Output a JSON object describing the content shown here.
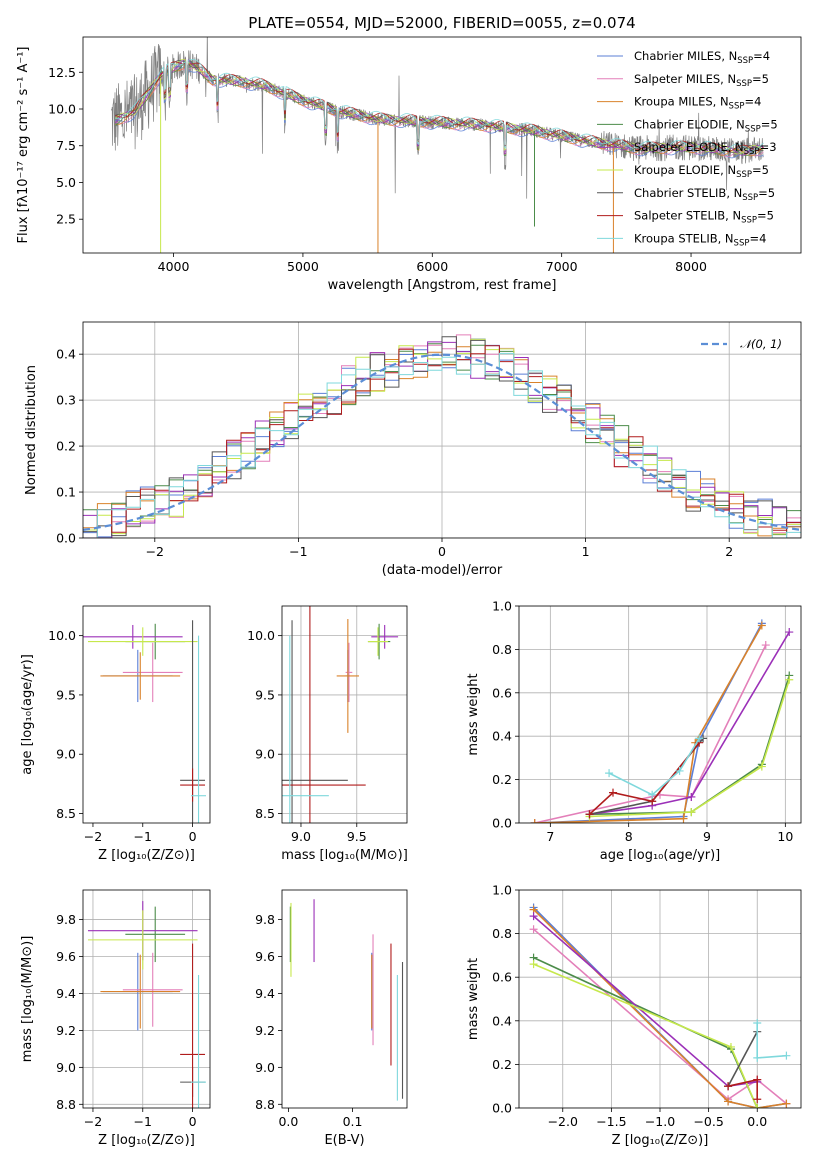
{
  "colors": {
    "Chabrier MILES": "#5b7fd6",
    "Salpeter MILES": "#e37fb9",
    "Kroupa MILES": "#d9822b",
    "Chabrier ELODIE": "#4c8c4a",
    "Salpeter ELODIE": "#9b30b8",
    "Kroupa ELODIE": "#c6e84c",
    "Chabrier STELIB": "#555555",
    "Salpeter STELIB": "#b01c1c",
    "Kroupa STELIB": "#7fd8dc",
    "data": "#808080",
    "normal": "#5b8ed6"
  },
  "chart_data": [
    {
      "type": "line",
      "title": "PLATE=0554, MJD=52000, FIBERID=0055, z=0.074",
      "xlabel": "wavelength [Angstrom, rest frame]",
      "ylabel": "Flux [fλ10⁻¹⁷ erg cm⁻² s⁻¹ A⁻¹]",
      "xlim": [
        3300,
        8850
      ],
      "ylim": [
        0.2,
        14.9
      ],
      "xticks": [
        "4000",
        "5000",
        "6000",
        "7000",
        "8000"
      ],
      "yticks": [
        "2.5",
        "5.0",
        "7.5",
        "10.0",
        "12.5"
      ],
      "legend_position": "top-right",
      "legend": [
        "Chabrier MILES, N_SSP=4",
        "Salpeter MILES, N_SSP=5",
        "Kroupa MILES, N_SSP=4",
        "Chabrier ELODIE, N_SSP=5",
        "Salpeter ELODIE, N_SSP=3",
        "Kroupa ELODIE, N_SSP=5",
        "Chabrier STELIB, N_SSP=5",
        "Salpeter STELIB, N_SSP=5",
        "Kroupa STELIB, N_SSP=4"
      ],
      "continuum": {
        "wavelength": [
          3550,
          3700,
          3800,
          3900,
          4000,
          4100,
          4200,
          4300,
          4500,
          4700,
          5000,
          5300,
          5600,
          6000,
          6400,
          6800,
          7200,
          7600,
          8000,
          8400,
          8550
        ],
        "flux": [
          9.2,
          9.8,
          11.0,
          12.3,
          12.8,
          13.2,
          12.7,
          12.0,
          11.9,
          11.6,
          10.6,
          9.8,
          9.3,
          9.1,
          8.9,
          8.5,
          7.8,
          7.3,
          7.4,
          7.1,
          7.3
        ]
      }
    },
    {
      "type": "line",
      "xlabel": "(data-model)/error",
      "ylabel": "Normed distribution",
      "xlim": [
        -2.5,
        2.5
      ],
      "ylim": [
        0,
        0.47
      ],
      "xticks": [
        "−2",
        "−1",
        "0",
        "1",
        "2"
      ],
      "yticks": [
        "0.0",
        "0.1",
        "0.2",
        "0.3",
        "0.4"
      ],
      "legend_position": "top-right",
      "legend": [
        "𝒩(0, 1)"
      ],
      "histogram_bin_edges": [
        -2.5,
        -2.4,
        -2.3,
        -2.2,
        -2.1,
        -2.0,
        -1.9,
        -1.8,
        -1.7,
        -1.6,
        -1.5,
        -1.4,
        -1.3,
        -1.2,
        -1.1,
        -1.0,
        -0.9,
        -0.8,
        -0.7,
        -0.6,
        -0.5,
        -0.4,
        -0.3,
        -0.2,
        -0.1,
        0.0,
        0.1,
        0.2,
        0.3,
        0.4,
        0.5,
        0.6,
        0.7,
        0.8,
        0.9,
        1.0,
        1.1,
        1.2,
        1.3,
        1.4,
        1.5,
        1.6,
        1.7,
        1.8,
        1.9,
        2.0,
        2.1,
        2.2,
        2.3,
        2.4,
        2.5
      ],
      "histogram_values": [
        0.02,
        0.03,
        0.04,
        0.06,
        0.07,
        0.08,
        0.09,
        0.11,
        0.13,
        0.15,
        0.17,
        0.19,
        0.21,
        0.23,
        0.26,
        0.28,
        0.29,
        0.31,
        0.33,
        0.35,
        0.36,
        0.37,
        0.38,
        0.39,
        0.39,
        0.4,
        0.4,
        0.39,
        0.38,
        0.37,
        0.35,
        0.33,
        0.31,
        0.29,
        0.27,
        0.25,
        0.23,
        0.2,
        0.18,
        0.16,
        0.14,
        0.12,
        0.1,
        0.09,
        0.08,
        0.06,
        0.05,
        0.04,
        0.03,
        0.02
      ]
    },
    {
      "type": "scatter",
      "xlabel": "Z [log₁₀(Z/Z⊙)]",
      "ylabel": "age  [log₁₀(age/yr)]",
      "xlim": [
        -2.2,
        0.35
      ],
      "ylim": [
        8.42,
        10.25
      ],
      "xticks": [
        "−2",
        "−1",
        "0"
      ],
      "yticks": [
        "8.5",
        "9.0",
        "9.5",
        "10.0"
      ],
      "points": [
        {
          "model": "Chabrier MILES",
          "x": -1.1,
          "y": 9.66,
          "xerr": 0.7,
          "yerr": 0.22
        },
        {
          "model": "Salpeter MILES",
          "x": -0.8,
          "y": 9.69,
          "xerr": 0.6,
          "yerr": 0.25
        },
        {
          "model": "Kroupa MILES",
          "x": -1.05,
          "y": 9.66,
          "xerr": 0.8,
          "yerr": 0.2
        },
        {
          "model": "Chabrier ELODIE",
          "x": -0.75,
          "y": 9.95,
          "xerr": 0.6,
          "yerr": 0.15
        },
        {
          "model": "Salpeter ELODIE",
          "x": -1.2,
          "y": 9.99,
          "xerr": 1.0,
          "yerr": 0.1
        },
        {
          "model": "Kroupa ELODIE",
          "x": -1.0,
          "y": 9.95,
          "xerr": 1.1,
          "yerr": 0.12
        },
        {
          "model": "Chabrier STELIB",
          "x": 0.0,
          "y": 8.78,
          "xerr": 0.25,
          "yerr": 1.35
        },
        {
          "model": "Salpeter STELIB",
          "x": 0.0,
          "y": 8.74,
          "xerr": 0.25,
          "yerr": 0.14
        },
        {
          "model": "Kroupa STELIB",
          "x": 0.12,
          "y": 8.65,
          "xerr": 0.15,
          "yerr": 1.35
        }
      ]
    },
    {
      "type": "scatter",
      "xlabel": "mass [log₁₀(M/M⊙)]",
      "ylabel": "",
      "xlim": [
        8.83,
        9.95
      ],
      "ylim": [
        8.42,
        10.25
      ],
      "xticks": [
        "9.0",
        "9.5"
      ],
      "yticks": [
        "8.5",
        "9.0",
        "9.5",
        "10.0"
      ],
      "points": [
        {
          "model": "Chabrier MILES",
          "x": 9.42,
          "y": 9.66,
          "xerr": 0.02,
          "yerr": 0.22
        },
        {
          "model": "Salpeter MILES",
          "x": 9.43,
          "y": 9.69,
          "xerr": 0.03,
          "yerr": 0.25
        },
        {
          "model": "Kroupa MILES",
          "x": 9.42,
          "y": 9.66,
          "xerr": 0.1,
          "yerr": 0.48
        },
        {
          "model": "Chabrier ELODIE",
          "x": 9.7,
          "y": 9.95,
          "xerr": 0.1,
          "yerr": 0.15
        },
        {
          "model": "Salpeter ELODIE",
          "x": 9.75,
          "y": 9.99,
          "xerr": 0.12,
          "yerr": 0.1
        },
        {
          "model": "Kroupa ELODIE",
          "x": 9.69,
          "y": 9.95,
          "xerr": 0.09,
          "yerr": 0.12
        },
        {
          "model": "Chabrier STELIB",
          "x": 8.92,
          "y": 8.78,
          "xerr": 0.5,
          "yerr": 1.35
        },
        {
          "model": "Salpeter STELIB",
          "x": 9.08,
          "y": 8.74,
          "xerr": 0.5,
          "yerr": 1.9
        },
        {
          "model": "Kroupa STELIB",
          "x": 8.9,
          "y": 8.65,
          "xerr": 0.35,
          "yerr": 1.35
        }
      ]
    },
    {
      "type": "line",
      "xlabel": "age  [log₁₀(age/yr)]",
      "ylabel": "mass weight",
      "xlim": [
        6.6,
        10.2
      ],
      "ylim": [
        0,
        1.0
      ],
      "xticks": [
        "7",
        "8",
        "9",
        "10"
      ],
      "yticks": [
        "0.0",
        "0.2",
        "0.4",
        "0.6",
        "0.8",
        "1.0"
      ],
      "series": [
        {
          "model": "Chabrier MILES",
          "x": [
            6.8,
            8.7,
            8.9,
            9.7
          ],
          "y": [
            0.0,
            0.03,
            0.38,
            0.92
          ]
        },
        {
          "model": "Salpeter MILES",
          "x": [
            6.8,
            8.4,
            8.8,
            9.75
          ],
          "y": [
            0.0,
            0.13,
            0.12,
            0.82
          ]
        },
        {
          "model": "Kroupa MILES",
          "x": [
            6.8,
            8.7,
            8.85,
            9.7
          ],
          "y": [
            0.0,
            0.02,
            0.37,
            0.91
          ]
        },
        {
          "model": "Chabrier ELODIE",
          "x": [
            7.5,
            8.8,
            9.7,
            10.05
          ],
          "y": [
            0.04,
            0.05,
            0.27,
            0.68
          ]
        },
        {
          "model": "Salpeter ELODIE",
          "x": [
            7.5,
            8.3,
            8.8,
            10.05
          ],
          "y": [
            0.04,
            0.08,
            0.12,
            0.88
          ]
        },
        {
          "model": "Kroupa ELODIE",
          "x": [
            7.5,
            8.8,
            9.7,
            10.05
          ],
          "y": [
            0.03,
            0.05,
            0.26,
            0.66
          ]
        },
        {
          "model": "Chabrier STELIB",
          "x": [
            7.5,
            8.3,
            8.95
          ],
          "y": [
            0.04,
            0.1,
            0.39
          ]
        },
        {
          "model": "Salpeter STELIB",
          "x": [
            7.5,
            7.8,
            8.3,
            8.9
          ],
          "y": [
            0.04,
            0.14,
            0.1,
            0.37
          ]
        },
        {
          "model": "Kroupa STELIB",
          "x": [
            7.75,
            8.3,
            8.65,
            8.9
          ],
          "y": [
            0.23,
            0.13,
            0.24,
            0.39
          ]
        }
      ]
    },
    {
      "type": "scatter",
      "xlabel": "Z [log₁₀(Z/Z⊙)]",
      "ylabel": "mass [log₁₀(M/M⊙)]",
      "xlim": [
        -2.2,
        0.35
      ],
      "ylim": [
        8.78,
        9.96
      ],
      "xticks": [
        "−2",
        "−1",
        "0"
      ],
      "yticks": [
        "8.8",
        "9.0",
        "9.2",
        "9.4",
        "9.6",
        "9.8"
      ],
      "points": [
        {
          "model": "Chabrier MILES",
          "x": -1.1,
          "y": 9.41,
          "xerr": 0.7,
          "yerr": 0.21
        },
        {
          "model": "Salpeter MILES",
          "x": -0.8,
          "y": 9.42,
          "xerr": 0.6,
          "yerr": 0.2
        },
        {
          "model": "Kroupa MILES",
          "x": -1.05,
          "y": 9.41,
          "xerr": 0.8,
          "yerr": 0.2
        },
        {
          "model": "Chabrier ELODIE",
          "x": -0.75,
          "y": 9.72,
          "xerr": 0.6,
          "yerr": 0.15
        },
        {
          "model": "Salpeter ELODIE",
          "x": -1.0,
          "y": 9.74,
          "xerr": 1.1,
          "yerr": 0.16
        },
        {
          "model": "Kroupa ELODIE",
          "x": -1.0,
          "y": 9.69,
          "xerr": 1.1,
          "yerr": 0.16
        },
        {
          "model": "Chabrier STELIB",
          "x": 0.0,
          "y": 8.92,
          "xerr": 0.25,
          "yerr": 0.08
        },
        {
          "model": "Salpeter STELIB",
          "x": 0.0,
          "y": 9.07,
          "xerr": 0.25,
          "yerr": 0.6
        },
        {
          "model": "Kroupa STELIB",
          "x": 0.12,
          "y": 8.92,
          "xerr": 0.15,
          "yerr": 0.58
        }
      ]
    },
    {
      "type": "scatter",
      "xlabel": "E(B-V)",
      "ylabel": "",
      "xlim": [
        -0.01,
        0.185
      ],
      "ylim": [
        8.78,
        9.96
      ],
      "xticks": [
        "0.0",
        "0.1"
      ],
      "yticks": [
        "8.8",
        "9.0",
        "9.2",
        "9.4",
        "9.6",
        "9.8"
      ],
      "points": [
        {
          "model": "Chabrier MILES",
          "x": 0.13,
          "y": 9.41,
          "yerr": 0.21
        },
        {
          "model": "Salpeter MILES",
          "x": 0.132,
          "y": 9.42,
          "yerr": 0.3
        },
        {
          "model": "Kroupa MILES",
          "x": 0.13,
          "y": 9.41,
          "yerr": 0.2
        },
        {
          "model": "Chabrier ELODIE",
          "x": 0.003,
          "y": 9.72,
          "yerr": 0.15
        },
        {
          "model": "Salpeter ELODIE",
          "x": 0.04,
          "y": 9.74,
          "yerr": 0.17
        },
        {
          "model": "Kroupa ELODIE",
          "x": 0.004,
          "y": 9.69,
          "yerr": 0.2
        },
        {
          "model": "Chabrier STELIB",
          "x": 0.178,
          "y": 9.2,
          "yerr": 0.37
        },
        {
          "model": "Salpeter STELIB",
          "x": 0.16,
          "y": 9.34,
          "yerr": 0.33
        },
        {
          "model": "Kroupa STELIB",
          "x": 0.17,
          "y": 9.16,
          "yerr": 0.34
        }
      ]
    },
    {
      "type": "line",
      "xlabel": "Z [log₁₀(Z/Z⊙)]",
      "ylabel": "mass weight",
      "xlim": [
        -2.45,
        0.45
      ],
      "ylim": [
        0,
        1.0
      ],
      "xticks": [
        "−2.0",
        "−1.5",
        "−1.0",
        "−0.5",
        "0.0"
      ],
      "yticks": [
        "0.0",
        "0.2",
        "0.4",
        "0.6",
        "0.8",
        "1.0"
      ],
      "series": [
        {
          "model": "Chabrier MILES",
          "x": [
            -2.3,
            -0.3,
            0.0,
            0.3
          ],
          "y": [
            0.92,
            0.03,
            0.0,
            0.02
          ]
        },
        {
          "model": "Salpeter MILES",
          "x": [
            -2.3,
            -0.3,
            0.0,
            0.3
          ],
          "y": [
            0.82,
            0.04,
            0.13,
            0.02
          ]
        },
        {
          "model": "Kroupa MILES",
          "x": [
            -2.3,
            -0.3,
            0.0,
            0.3
          ],
          "y": [
            0.91,
            0.03,
            0.0,
            0.02
          ]
        },
        {
          "model": "Chabrier ELODIE",
          "x": [
            -2.3,
            -0.27,
            0.0
          ],
          "y": [
            0.69,
            0.27,
            0.0
          ]
        },
        {
          "model": "Salpeter ELODIE",
          "x": [
            -2.3,
            -0.3,
            0.0
          ],
          "y": [
            0.88,
            0.1,
            0.12
          ]
        },
        {
          "model": "Kroupa ELODIE",
          "x": [
            -2.3,
            -0.27,
            0.0
          ],
          "y": [
            0.66,
            0.28,
            0.0
          ]
        },
        {
          "model": "Chabrier STELIB",
          "x": [
            -0.3,
            0.0
          ],
          "y": [
            0.1,
            0.35
          ]
        },
        {
          "model": "Salpeter STELIB",
          "x": [
            -0.3,
            0.0,
            0.0
          ],
          "y": [
            0.1,
            0.13,
            0.04
          ]
        },
        {
          "model": "Kroupa STELIB",
          "x": [
            0.0,
            0.0,
            0.3
          ],
          "y": [
            0.39,
            0.23,
            0.24
          ]
        }
      ]
    }
  ]
}
